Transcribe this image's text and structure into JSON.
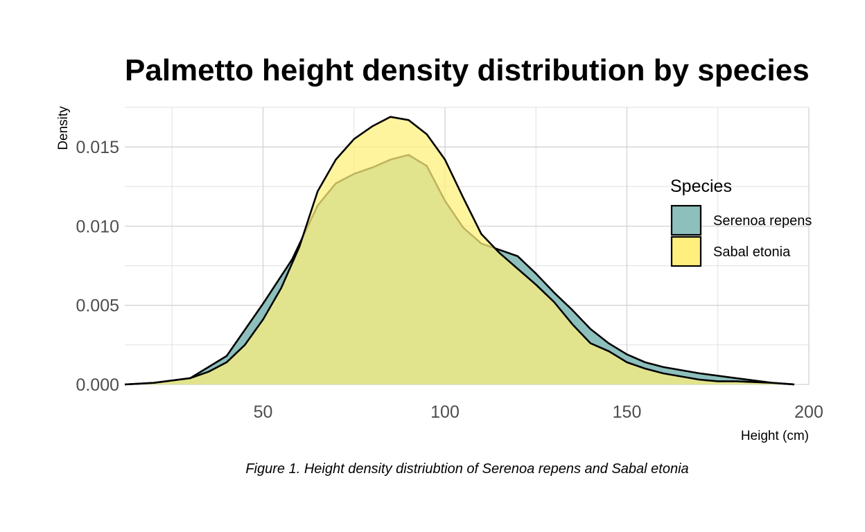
{
  "chart_data": {
    "type": "area",
    "subtype": "density",
    "title": "Palmetto height density distribution by species",
    "xlabel": "Height (cm)",
    "ylabel": "Density",
    "caption": "Figure 1. Height density distriubtion of Serenoa repens and Sabal etonia",
    "xlim": [
      12,
      200
    ],
    "ylim": [
      0,
      0.0175
    ],
    "x_ticks": [
      50,
      100,
      150,
      200
    ],
    "y_ticks": [
      0,
      0.005,
      0.01,
      0.015
    ],
    "y_tick_labels": [
      "0.000",
      "0.005",
      "0.010",
      "0.015"
    ],
    "grid": true,
    "legend": {
      "title": "Species",
      "position": "right"
    },
    "series": [
      {
        "name": "Serenoa repens",
        "color": "#8DBFBC",
        "points": [
          [
            12,
            0
          ],
          [
            20,
            0.0001
          ],
          [
            30,
            0.0004
          ],
          [
            40,
            0.0018
          ],
          [
            50,
            0.0051
          ],
          [
            58,
            0.0079
          ],
          [
            65,
            0.0113
          ],
          [
            70,
            0.0127
          ],
          [
            75,
            0.0133
          ],
          [
            80,
            0.0137
          ],
          [
            85,
            0.0142
          ],
          [
            90,
            0.0145
          ],
          [
            95,
            0.0138
          ],
          [
            100,
            0.0116
          ],
          [
            105,
            0.0099
          ],
          [
            110,
            0.0089
          ],
          [
            115,
            0.0085
          ],
          [
            120,
            0.0081
          ],
          [
            125,
            0.007
          ],
          [
            130,
            0.0058
          ],
          [
            135,
            0.0047
          ],
          [
            140,
            0.0035
          ],
          [
            145,
            0.0026
          ],
          [
            150,
            0.0019
          ],
          [
            155,
            0.0014
          ],
          [
            160,
            0.0011
          ],
          [
            170,
            0.0007
          ],
          [
            180,
            0.0004
          ],
          [
            190,
            0.0001
          ],
          [
            196,
            0
          ]
        ]
      },
      {
        "name": "Sabal etonia",
        "color": "#FFF07D",
        "points": [
          [
            12,
            0
          ],
          [
            20,
            0.0001
          ],
          [
            30,
            0.0004
          ],
          [
            35,
            0.0008
          ],
          [
            40,
            0.0014
          ],
          [
            45,
            0.0025
          ],
          [
            50,
            0.0041
          ],
          [
            55,
            0.0061
          ],
          [
            60,
            0.0087
          ],
          [
            65,
            0.0122
          ],
          [
            70,
            0.0142
          ],
          [
            75,
            0.0155
          ],
          [
            80,
            0.0163
          ],
          [
            85,
            0.0169
          ],
          [
            90,
            0.0167
          ],
          [
            95,
            0.0158
          ],
          [
            100,
            0.0142
          ],
          [
            105,
            0.0118
          ],
          [
            110,
            0.0095
          ],
          [
            115,
            0.0083
          ],
          [
            120,
            0.0073
          ],
          [
            125,
            0.0063
          ],
          [
            130,
            0.0052
          ],
          [
            135,
            0.0038
          ],
          [
            140,
            0.0026
          ],
          [
            145,
            0.0021
          ],
          [
            150,
            0.0014
          ],
          [
            155,
            0.001
          ],
          [
            160,
            0.0007
          ],
          [
            170,
            0.0003
          ],
          [
            175,
            0.0002
          ],
          [
            180,
            0.0002
          ],
          [
            190,
            0.0001
          ],
          [
            196,
            0
          ]
        ]
      }
    ]
  }
}
